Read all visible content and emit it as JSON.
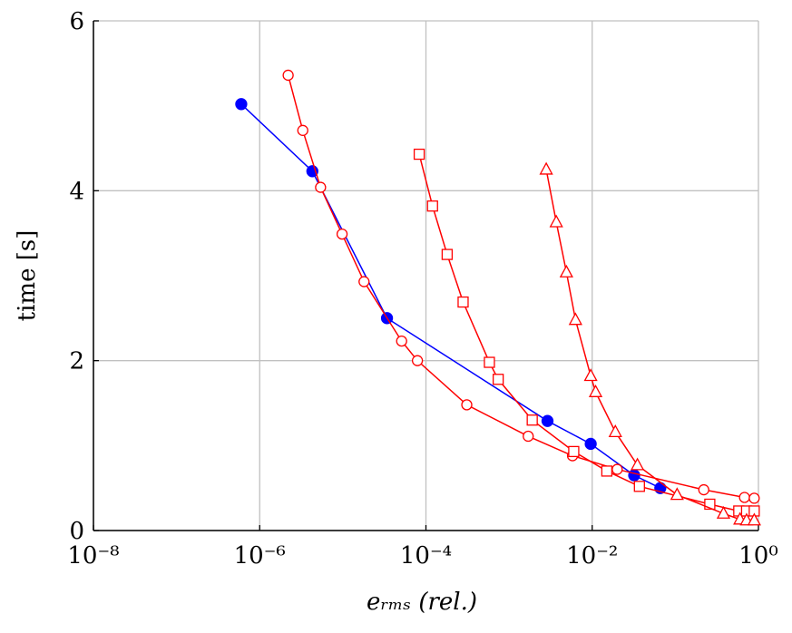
{
  "chart_data": {
    "type": "line",
    "x_label": "eᵣₘₛ (rel.)",
    "y_label": "time [s]",
    "xscale": "log",
    "xlim": [
      1e-08,
      1
    ],
    "xticks": [
      {
        "value": 1e-08,
        "label": "10⁻⁸"
      },
      {
        "value": 1e-06,
        "label": "10⁻⁶"
      },
      {
        "value": 0.0001,
        "label": "10⁻⁴"
      },
      {
        "value": 0.01,
        "label": "10⁻²"
      },
      {
        "value": 1,
        "label": "10⁰"
      }
    ],
    "ylim": [
      0,
      6
    ],
    "yticks": [
      0,
      2,
      4,
      6
    ],
    "grid": true,
    "series": [
      {
        "color": "#0000ff",
        "marker": "filled-circle",
        "x": [
          6e-07,
          4.3e-06,
          3.4e-05,
          0.0029,
          0.0096,
          0.032,
          0.066
        ],
        "values": [
          5.02,
          4.23,
          2.5,
          1.29,
          1.02,
          0.65,
          0.5
        ]
      },
      {
        "color": "#ff0000",
        "marker": "circle",
        "x": [
          2.2e-06,
          3.3e-06,
          5.4e-06,
          9.8e-06,
          1.8e-05,
          5.1e-05,
          7.9e-05,
          0.00031,
          0.0017,
          0.0058,
          0.02,
          0.22,
          0.68,
          0.89
        ],
        "values": [
          5.36,
          4.71,
          4.04,
          3.49,
          2.93,
          2.23,
          2.0,
          1.48,
          1.11,
          0.88,
          0.72,
          0.48,
          0.39,
          0.38
        ]
      },
      {
        "color": "#ff0000",
        "marker": "square",
        "x": [
          8.3e-05,
          0.00012,
          0.00018,
          0.00028,
          0.00058,
          0.00074,
          0.0019,
          0.006,
          0.015,
          0.037,
          0.26,
          0.58,
          0.72,
          0.89
        ],
        "values": [
          4.43,
          3.82,
          3.25,
          2.69,
          1.98,
          1.78,
          1.3,
          0.93,
          0.7,
          0.52,
          0.31,
          0.23,
          0.23,
          0.23
        ]
      },
      {
        "color": "#ff0000",
        "marker": "triangle",
        "x": [
          0.0028,
          0.0037,
          0.0049,
          0.0063,
          0.0096,
          0.011,
          0.019,
          0.035,
          0.105,
          0.38,
          0.6,
          0.72,
          0.89
        ],
        "values": [
          4.25,
          3.63,
          3.04,
          2.48,
          1.82,
          1.63,
          1.16,
          0.77,
          0.42,
          0.2,
          0.13,
          0.12,
          0.12
        ]
      }
    ]
  }
}
